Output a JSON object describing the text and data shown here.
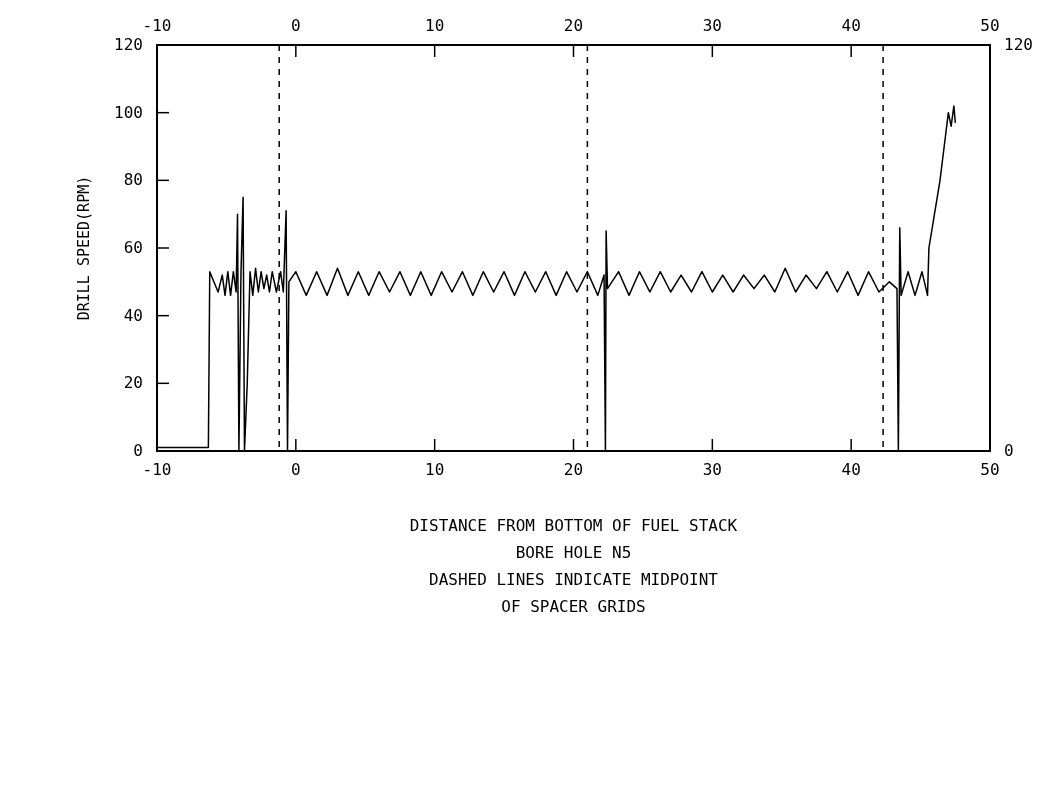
{
  "chart_data": {
    "type": "line",
    "xlabel": "DISTANCE FROM BOTTOM OF FUEL STACK",
    "ylabel": "DRILL SPEED(RPM)",
    "annotations": [
      "BORE HOLE N5",
      "DASHED LINES INDICATE MIDPOINT",
      "OF SPACER GRIDS"
    ],
    "xlim": [
      -10,
      50
    ],
    "xticks": [
      -10,
      0,
      10,
      20,
      30,
      40,
      50
    ],
    "x2lim": [
      -10,
      50
    ],
    "x2ticks": [
      -10,
      0,
      10,
      20,
      30,
      40,
      50
    ],
    "ylim": [
      0,
      120
    ],
    "yticks": [
      0,
      20,
      40,
      60,
      80,
      100,
      120
    ],
    "y2lim": [
      0,
      120
    ],
    "y2ticks": [
      0,
      120
    ],
    "grid": false,
    "marker": "none",
    "line_style": "solid",
    "ref_lines": [
      {
        "axis": "x",
        "value": -1.2,
        "line_style": "dashed",
        "color": "#000000"
      },
      {
        "axis": "x",
        "value": 21,
        "line_style": "dashed",
        "color": "#000000"
      },
      {
        "axis": "x",
        "value": 42.3,
        "line_style": "dashed",
        "color": "#000000"
      }
    ],
    "series": [
      {
        "color": "#000000",
        "x": [
          -10,
          -6.3,
          -6.2,
          -5.6,
          -5.3,
          -5.1,
          -4.9,
          -4.7,
          -4.5,
          -4.3,
          -4.2,
          -4.1,
          -3.95,
          -3.8,
          -3.7,
          -3.5,
          -3.3,
          -3.1,
          -2.9,
          -2.7,
          -2.5,
          -2.3,
          -2.1,
          -1.9,
          -1.7,
          -1.4,
          -1.1,
          -0.9,
          -0.7,
          -0.6,
          -0.5,
          0,
          0.75,
          1.5,
          2.25,
          3,
          3.75,
          4.5,
          5.25,
          6,
          6.75,
          7.5,
          8.25,
          9,
          9.75,
          10.5,
          11.25,
          12,
          12.75,
          13.5,
          14.25,
          15,
          15.75,
          16.5,
          17.25,
          18,
          18.75,
          19.5,
          20.25,
          21,
          21.75,
          22.2,
          22.3,
          22.35,
          22.45,
          23.25,
          24,
          24.75,
          25.5,
          26.25,
          27,
          27.75,
          28.5,
          29.25,
          30,
          30.75,
          31.5,
          32.25,
          33,
          33.75,
          34.5,
          35.25,
          36,
          36.75,
          37.5,
          38.25,
          39,
          39.75,
          40.5,
          41.25,
          42,
          42.75,
          43.3,
          43.4,
          43.5,
          43.6,
          44.1,
          44.6,
          45.1,
          45.5,
          45.6,
          46,
          46.4,
          46.7,
          47,
          47.2,
          47.4,
          47.5
        ],
        "values": [
          1,
          1,
          53,
          47,
          52,
          46,
          53,
          46,
          53,
          47,
          70,
          0,
          53,
          75,
          0,
          20,
          53,
          46,
          54,
          47,
          53,
          48,
          52,
          47,
          53,
          47,
          53,
          47,
          71,
          0,
          50,
          53,
          46,
          53,
          46,
          54,
          46,
          53,
          46,
          53,
          47,
          53,
          46,
          53,
          46,
          53,
          47,
          53,
          46,
          53,
          47,
          53,
          46,
          53,
          47,
          53,
          46,
          53,
          47,
          53,
          46,
          52,
          0,
          65,
          48,
          53,
          46,
          53,
          47,
          53,
          47,
          52,
          47,
          53,
          47,
          52,
          47,
          52,
          48,
          52,
          47,
          54,
          47,
          52,
          48,
          53,
          47,
          53,
          46,
          53,
          47,
          50,
          48,
          0,
          66,
          46,
          53,
          46,
          53,
          46,
          60,
          70,
          80,
          90,
          100,
          96,
          102,
          97
        ]
      }
    ]
  }
}
